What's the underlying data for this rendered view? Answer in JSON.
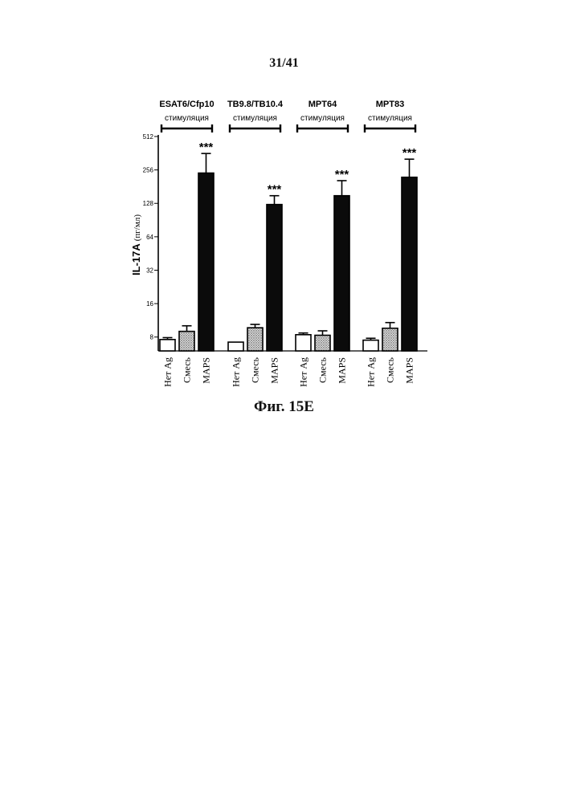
{
  "page_number": "31/41",
  "figure_caption": "Фиг. 15E",
  "chart_data": {
    "type": "bar",
    "scale": "log2",
    "ylim": [
      6,
      512
    ],
    "ylabel": "IL-17A",
    "ylabel_unit": "(пг/мл)",
    "yticks": [
      8,
      16,
      32,
      64,
      128,
      256,
      512
    ],
    "groups": [
      {
        "title": "ESAT6/Cfp10",
        "subtitle": "стимуляция",
        "bars": [
          {
            "label": "Нет Ag",
            "value": 7.6,
            "error": 0.3,
            "fill": "white",
            "sig": ""
          },
          {
            "label": "Смесь",
            "value": 9.0,
            "error": 1.1,
            "fill": "stipple",
            "sig": ""
          },
          {
            "label": "MAPS",
            "value": 240,
            "error": 120,
            "fill": "black",
            "sig": "***"
          }
        ]
      },
      {
        "title": "TB9.8/TB10.4",
        "subtitle": "стимуляция",
        "bars": [
          {
            "label": "Нет Ag",
            "value": 7.2,
            "error": 0,
            "fill": "white",
            "sig": ""
          },
          {
            "label": "Смесь",
            "value": 9.7,
            "error": 0.7,
            "fill": "stipple",
            "sig": ""
          },
          {
            "label": "MAPS",
            "value": 125,
            "error": 25,
            "fill": "black",
            "sig": "***"
          }
        ]
      },
      {
        "title": "MPT64",
        "subtitle": "стимуляция",
        "bars": [
          {
            "label": "Нет Ag",
            "value": 8.4,
            "error": 0.3,
            "fill": "white",
            "sig": ""
          },
          {
            "label": "Смесь",
            "value": 8.3,
            "error": 0.8,
            "fill": "stipple",
            "sig": ""
          },
          {
            "label": "MAPS",
            "value": 150,
            "error": 55,
            "fill": "black",
            "sig": "***"
          }
        ]
      },
      {
        "title": "MPT83",
        "subtitle": "стимуляция",
        "bars": [
          {
            "label": "Нет Ag",
            "value": 7.5,
            "error": 0.3,
            "fill": "white",
            "sig": ""
          },
          {
            "label": "Смесь",
            "value": 9.6,
            "error": 1.2,
            "fill": "stipple",
            "sig": ""
          },
          {
            "label": "MAPS",
            "value": 220,
            "error": 100,
            "fill": "black",
            "sig": "***"
          }
        ]
      }
    ]
  }
}
